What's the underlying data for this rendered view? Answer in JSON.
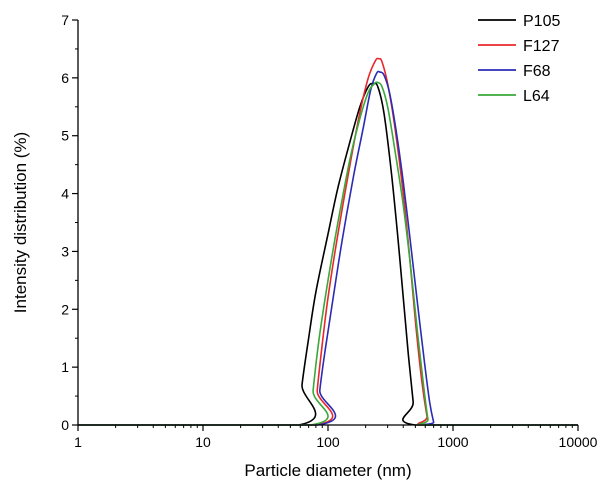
{
  "chart_data": {
    "type": "line",
    "xlabel": "Particle diameter (nm)",
    "ylabel": "Intensity distribution (%)",
    "x_scale": "log",
    "xlim": [
      1,
      10000
    ],
    "ylim": [
      0,
      7
    ],
    "x_ticks": [
      1,
      10,
      100,
      1000,
      10000
    ],
    "x_tick_labels": [
      "1",
      "10",
      "100",
      "1000",
      "10000"
    ],
    "y_ticks": [
      0,
      1,
      2,
      3,
      4,
      5,
      6,
      7
    ],
    "y_tick_labels": [
      "0",
      "1",
      "2",
      "3",
      "4",
      "5",
      "6",
      "7"
    ],
    "grid": false,
    "legend_position": "top-right",
    "series": [
      {
        "name": "P105",
        "color": "#000000",
        "x": [
          1,
          58,
          62,
          70,
          80,
          100,
          120,
          150,
          180,
          210,
          230,
          250,
          280,
          320,
          360,
          400,
          440,
          480,
          500,
          10000
        ],
        "y": [
          0,
          0,
          0.7,
          1.5,
          2.3,
          3.3,
          4.1,
          4.9,
          5.5,
          5.85,
          5.9,
          5.85,
          5.4,
          4.4,
          3.3,
          2.2,
          1.2,
          0.4,
          0,
          0
        ]
      },
      {
        "name": "F127",
        "color": "#e8282c",
        "x": [
          1,
          78,
          82,
          90,
          100,
          120,
          150,
          180,
          210,
          240,
          255,
          270,
          300,
          340,
          400,
          450,
          500,
          560,
          620,
          650,
          10000
        ],
        "y": [
          0,
          0,
          0.6,
          1.4,
          2.2,
          3.3,
          4.5,
          5.4,
          6.0,
          6.3,
          6.33,
          6.28,
          5.9,
          5.2,
          4.0,
          2.9,
          1.8,
          0.8,
          0.15,
          0,
          0
        ]
      },
      {
        "name": "F68",
        "color": "#2b2bb4",
        "x": [
          1,
          82,
          86,
          95,
          110,
          130,
          160,
          190,
          220,
          245,
          260,
          280,
          310,
          350,
          400,
          460,
          520,
          590,
          650,
          700,
          720,
          10000
        ],
        "y": [
          0,
          0,
          0.6,
          1.3,
          2.2,
          3.2,
          4.3,
          5.1,
          5.8,
          6.08,
          6.1,
          6.05,
          5.75,
          5.1,
          4.2,
          3.1,
          2.1,
          1.1,
          0.4,
          0.05,
          0,
          0
        ]
      },
      {
        "name": "L64",
        "color": "#3aa83a",
        "x": [
          1,
          72,
          76,
          85,
          100,
          120,
          150,
          180,
          210,
          235,
          250,
          270,
          300,
          340,
          400,
          460,
          520,
          580,
          630,
          660,
          10000
        ],
        "y": [
          0,
          0,
          0.6,
          1.5,
          2.5,
          3.5,
          4.6,
          5.3,
          5.75,
          5.9,
          5.92,
          5.85,
          5.5,
          4.8,
          3.8,
          2.7,
          1.6,
          0.7,
          0.1,
          0,
          0
        ]
      }
    ]
  }
}
